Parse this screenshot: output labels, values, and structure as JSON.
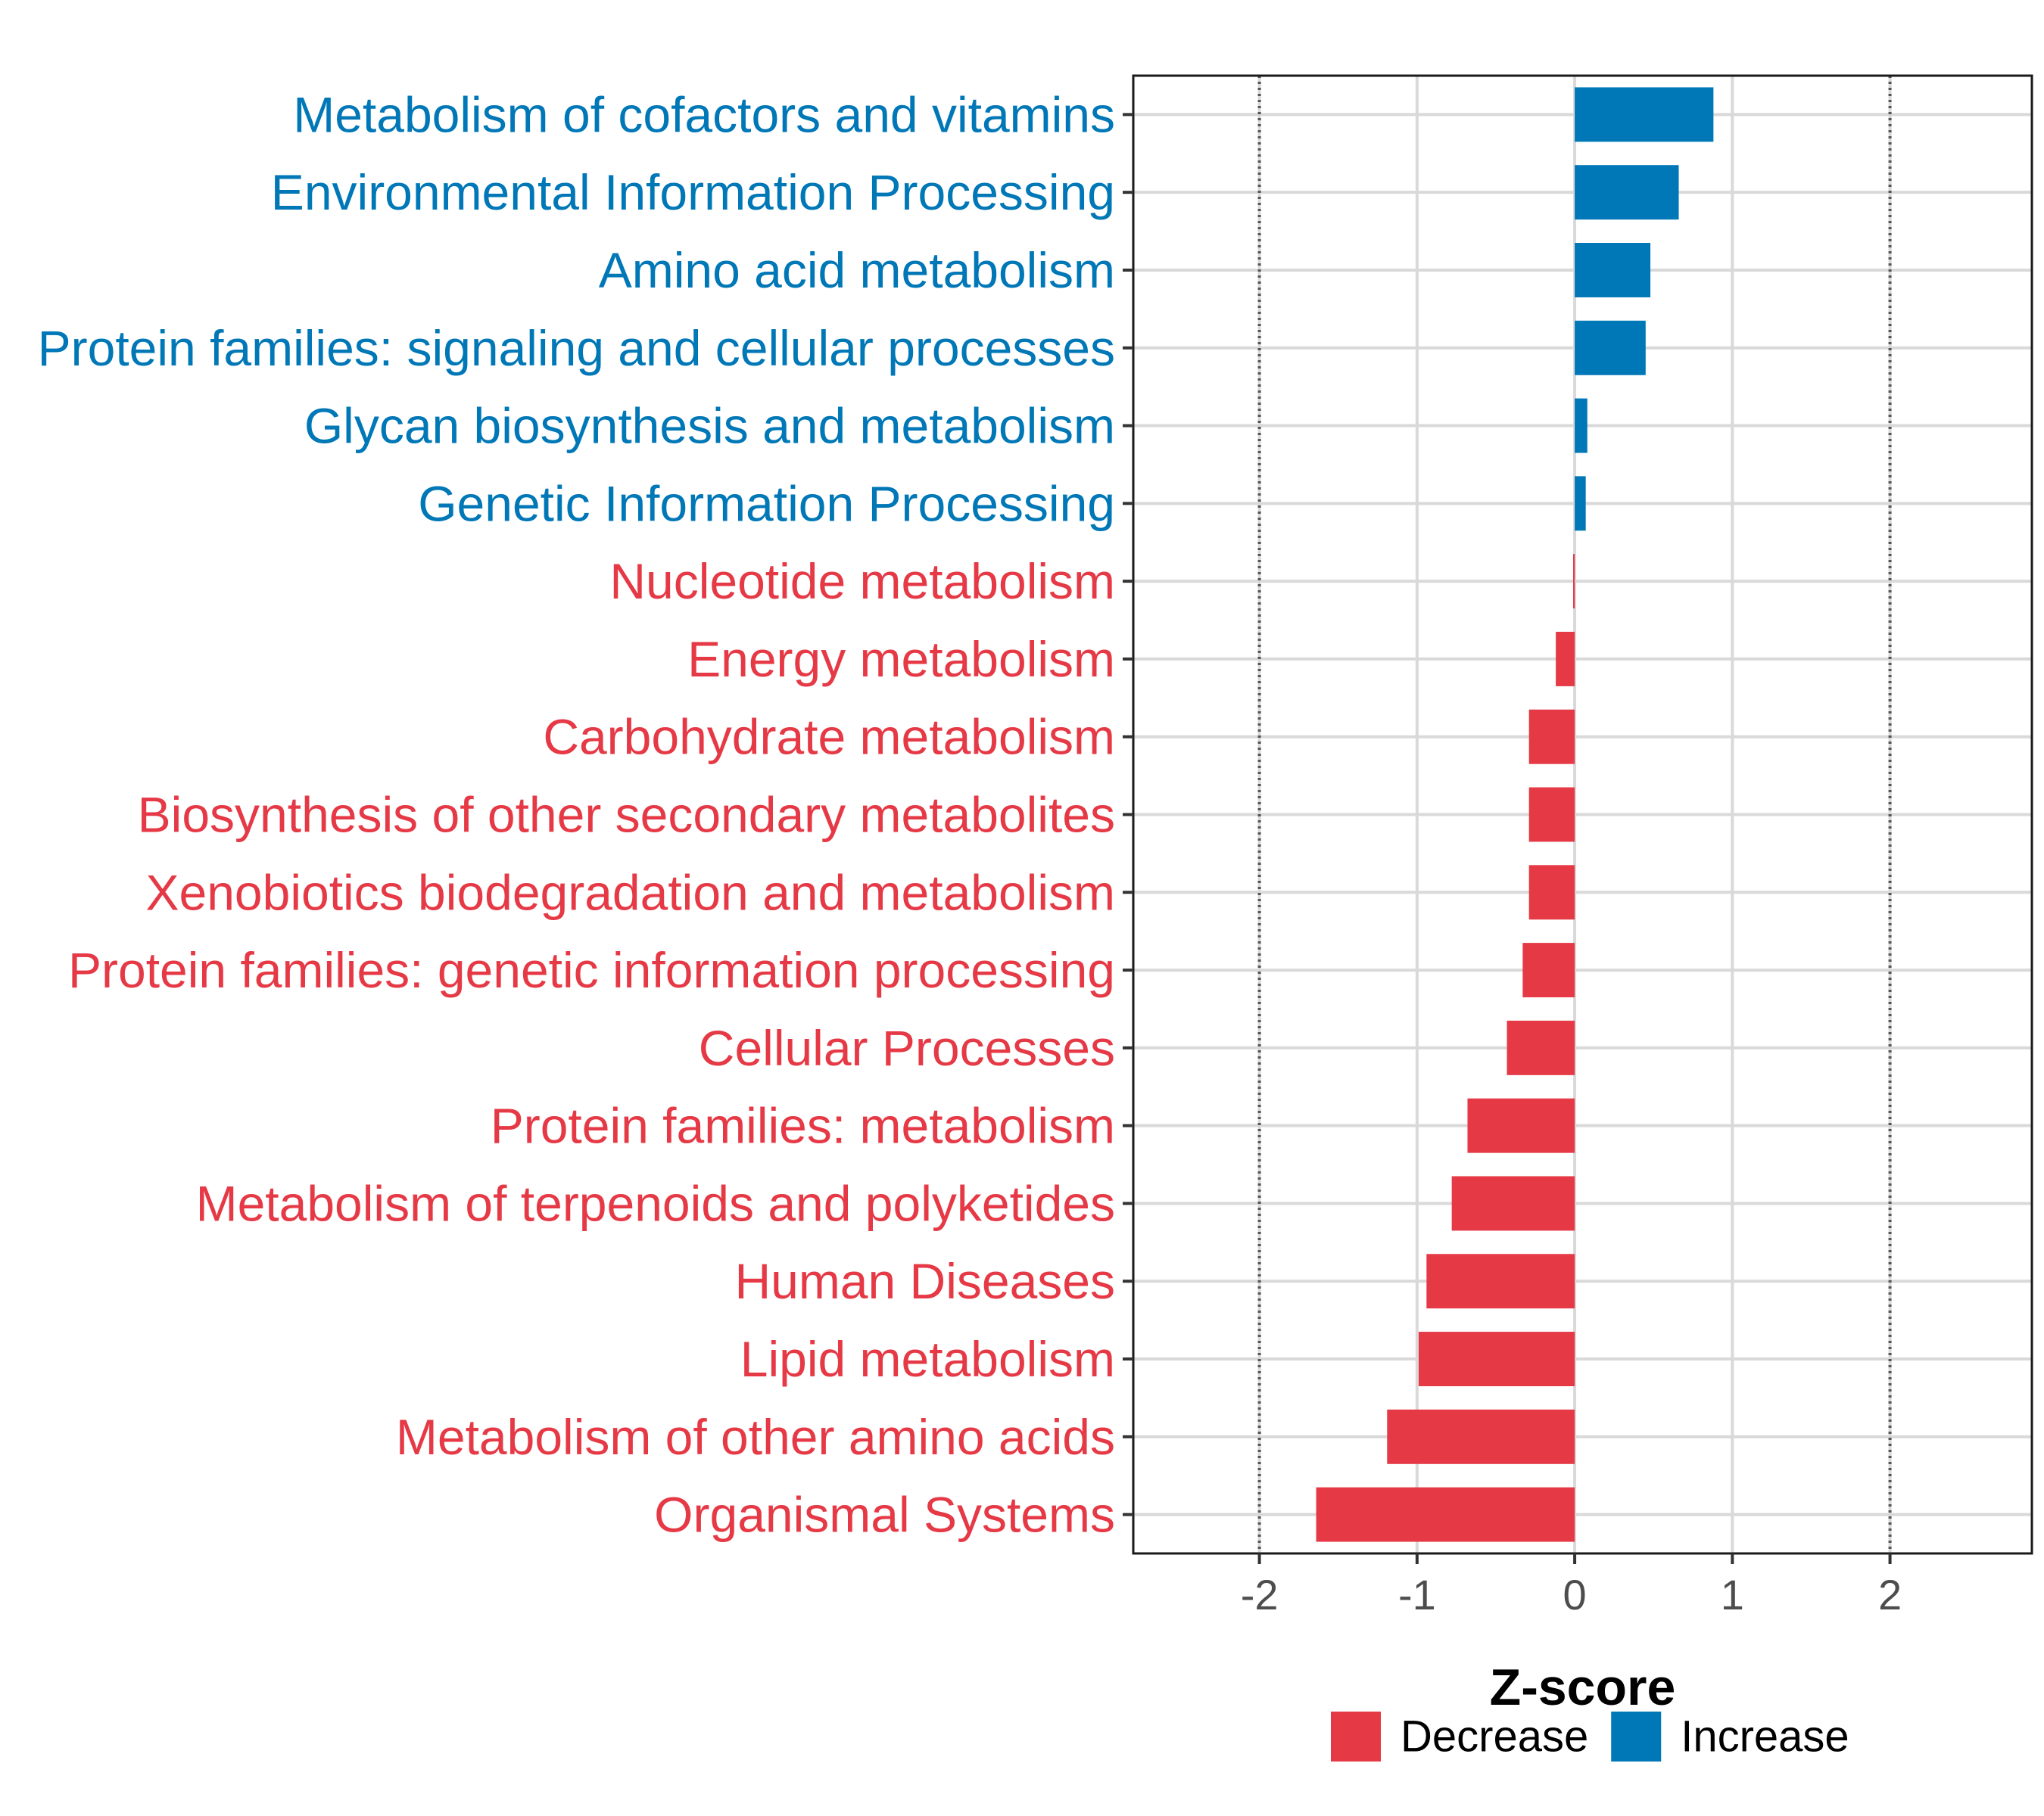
{
  "chart_data": {
    "type": "bar",
    "orientation": "horizontal",
    "xlabel": "Z-score",
    "ylabel": "",
    "xlim": [
      -2.8,
      2.9
    ],
    "xticks": [
      -2,
      -1,
      0,
      1,
      2
    ],
    "xtick_labels": [
      "-2",
      "-1",
      "0",
      "1",
      "2"
    ],
    "reference_lines": [
      -2,
      2
    ],
    "grid": true,
    "categories": [
      "Metabolism of cofactors and vitamins",
      "Environmental Information Processing",
      "Amino acid metabolism",
      "Protein families: signaling and cellular processes",
      "Glycan biosynthesis and metabolism",
      "Genetic Information Processing",
      "Nucleotide metabolism",
      "Energy metabolism",
      "Carbohydrate metabolism",
      "Biosynthesis of other secondary metabolites",
      "Xenobiotics biodegradation and metabolism",
      "Protein families: genetic information processing",
      "Cellular Processes",
      "Protein families: metabolism",
      "Metabolism of terpenoids and polyketides",
      "Human Diseases",
      "Lipid metabolism",
      "Metabolism of other amino acids",
      "Organismal Systems"
    ],
    "values": [
      0.88,
      0.66,
      0.48,
      0.45,
      0.08,
      0.07,
      -0.01,
      -0.12,
      -0.29,
      -0.29,
      -0.29,
      -0.33,
      -0.43,
      -0.68,
      -0.78,
      -0.94,
      -0.99,
      -1.19,
      -1.64
    ],
    "groups": [
      "Increase",
      "Increase",
      "Increase",
      "Increase",
      "Increase",
      "Increase",
      "Decrease",
      "Decrease",
      "Decrease",
      "Decrease",
      "Decrease",
      "Decrease",
      "Decrease",
      "Decrease",
      "Decrease",
      "Decrease",
      "Decrease",
      "Decrease",
      "Decrease"
    ],
    "legend": {
      "position": "bottom",
      "entries": [
        {
          "label": "Decrease",
          "color": "#e63946"
        },
        {
          "label": "Increase",
          "color": "#0077b6"
        }
      ]
    }
  },
  "colors": {
    "decrease": "#e63946",
    "increase": "#0077b6",
    "grid": "#d9d9d9",
    "reference": "#555555",
    "panel_border": "#1a1a1a"
  }
}
